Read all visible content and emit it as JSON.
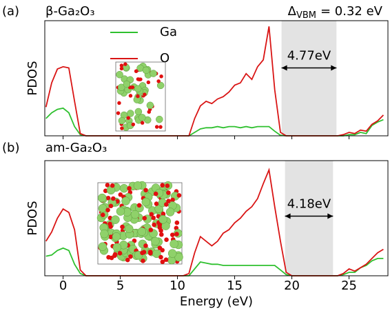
{
  "chart_data": [
    {
      "type": "line",
      "label": "(a)",
      "title": "β-Ga₂O₃",
      "annotation": {
        "symbol": "Δ",
        "subscript": "VBM",
        "text": "= 0.32 eV"
      },
      "ylabel": "PDOS",
      "legend": true,
      "show_xtick_labels": false,
      "xlim": [
        -1.6,
        28.4
      ],
      "ylim": [
        0,
        10
      ],
      "xticks": [
        0,
        5,
        10,
        15,
        20,
        25
      ],
      "gap": {
        "range": [
          19.1,
          23.9
        ],
        "label": "4.77eV"
      },
      "x": [
        -1.5,
        -1,
        -0.5,
        0,
        0.5,
        1,
        1.5,
        2,
        2.5,
        3,
        3.5,
        4,
        4.5,
        5,
        5.5,
        6,
        6.5,
        7,
        7.5,
        8,
        8.5,
        9,
        9.5,
        10,
        10.5,
        11,
        11.5,
        12,
        12.5,
        13,
        13.5,
        14,
        14.5,
        15,
        15.5,
        16,
        16.5,
        17,
        17.5,
        18,
        18.5,
        19,
        19.5,
        20,
        20.5,
        21,
        21.5,
        22,
        22.5,
        23,
        23.5,
        24,
        24.5,
        25,
        25.5,
        26,
        26.5,
        27,
        27.5,
        28
      ],
      "series": [
        {
          "name": "Ga",
          "color": "#2ec02e",
          "values": [
            1.5,
            2.0,
            2.3,
            2.4,
            2.0,
            0.8,
            0.1,
            0,
            0,
            0,
            0,
            0,
            0,
            0,
            0,
            0,
            0,
            0,
            0,
            0,
            0,
            0,
            0,
            0,
            0,
            0,
            0.3,
            0.6,
            0.7,
            0.7,
            0.8,
            0.7,
            0.8,
            0.8,
            0.7,
            0.8,
            0.7,
            0.8,
            0.8,
            0.8,
            0.4,
            0.05,
            0,
            0,
            0,
            0,
            0,
            0,
            0,
            0,
            0,
            0,
            0,
            0.1,
            0.1,
            0.3,
            0.2,
            0.9,
            1.2,
            1.4
          ]
        },
        {
          "name": "O",
          "color": "#d91414",
          "values": [
            2.5,
            4.6,
            5.8,
            6.0,
            5.9,
            3.0,
            0.2,
            0,
            0,
            0,
            0,
            0,
            0,
            0,
            0,
            0,
            0,
            0,
            0,
            0,
            0,
            0,
            0,
            0,
            0,
            0,
            1.5,
            2.6,
            3.0,
            2.8,
            3.2,
            3.4,
            3.8,
            4.4,
            4.6,
            5.4,
            4.9,
            6.0,
            6.6,
            9.5,
            4.0,
            0.3,
            0,
            0,
            0,
            0,
            0,
            0,
            0,
            0,
            0,
            0,
            0.1,
            0.3,
            0.2,
            0.5,
            0.4,
            1.0,
            1.3,
            1.8
          ]
        }
      ]
    },
    {
      "type": "line",
      "label": "(b)",
      "title": "am-Ga₂O₃",
      "ylabel": "PDOS",
      "xlabel": "Energy (eV)",
      "legend": false,
      "show_xtick_labels": true,
      "xlim": [
        -1.6,
        28.4
      ],
      "ylim": [
        0,
        10
      ],
      "xticks": [
        0,
        5,
        10,
        15,
        20,
        25
      ],
      "gap": {
        "range": [
          19.4,
          23.6
        ],
        "label": "4.18eV"
      },
      "x": [
        -1.5,
        -1,
        -0.5,
        0,
        0.5,
        1,
        1.5,
        2,
        2.5,
        3,
        3.5,
        4,
        4.5,
        5,
        5.5,
        6,
        6.5,
        7,
        7.5,
        8,
        8.5,
        9,
        9.5,
        10,
        10.5,
        11,
        11.5,
        12,
        12.5,
        13,
        13.5,
        14,
        14.5,
        15,
        15.5,
        16,
        16.5,
        17,
        17.5,
        18,
        18.5,
        19,
        19.5,
        20,
        20.5,
        21,
        21.5,
        22,
        22.5,
        23,
        23.5,
        24,
        24.5,
        25,
        25.5,
        26,
        26.5,
        27,
        27.5,
        28
      ],
      "series": [
        {
          "name": "Ga",
          "color": "#2ec02e",
          "values": [
            1.7,
            1.8,
            2.2,
            2.4,
            2.2,
            1.0,
            0.2,
            0,
            0,
            0,
            0,
            0,
            0,
            0,
            0,
            0,
            0,
            0,
            0,
            0,
            0,
            0,
            0,
            0,
            0,
            0,
            0.6,
            1.2,
            1.1,
            1.0,
            1.0,
            0.9,
            0.9,
            0.9,
            0.9,
            0.9,
            0.9,
            0.9,
            0.9,
            0.9,
            0.9,
            0.5,
            0.1,
            0,
            0,
            0,
            0,
            0,
            0,
            0,
            0,
            0,
            0.1,
            0.3,
            0.3,
            0.7,
            0.9,
            1.3,
            1.5,
            1.5
          ]
        },
        {
          "name": "O",
          "color": "#d91414",
          "values": [
            3.0,
            3.8,
            5.0,
            5.8,
            5.5,
            4.0,
            0.5,
            0,
            0,
            0,
            0,
            0,
            0,
            0,
            0,
            0,
            0,
            0,
            0,
            0,
            0,
            0,
            0,
            0,
            0,
            0.2,
            2.0,
            3.4,
            3.0,
            2.6,
            3.0,
            3.7,
            4.0,
            4.6,
            5.0,
            5.6,
            6.0,
            6.7,
            8.0,
            9.2,
            6.0,
            3.0,
            0.3,
            0,
            0,
            0,
            0,
            0,
            0,
            0,
            0,
            0,
            0.2,
            0.6,
            0.4,
            0.7,
            1.0,
            1.5,
            2.0,
            2.3
          ]
        }
      ]
    }
  ]
}
